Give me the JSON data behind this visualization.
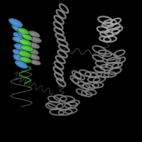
{
  "background_color": "#000000",
  "fig_width": 2.0,
  "fig_height": 2.0,
  "dpi": 100,
  "blue_color": "#4488cc",
  "green_color": "#44bb33",
  "gray_color": "#888888",
  "gray_light": "#aaaaaa",
  "gray_dark": "#666666"
}
